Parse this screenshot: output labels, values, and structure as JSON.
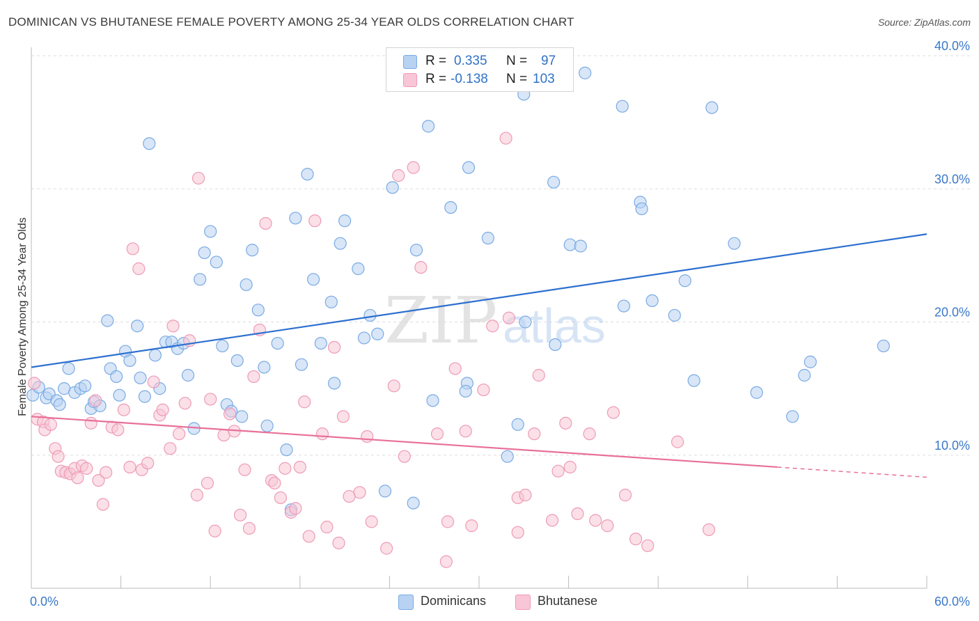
{
  "header": {
    "title": "DOMINICAN VS BHUTANESE FEMALE POVERTY AMONG 25-34 YEAR OLDS CORRELATION CHART",
    "source": "Source: ZipAtlas.com"
  },
  "legend": {
    "rows": [
      {
        "r_label": "R =",
        "r_value": "0.335",
        "n_label": "N =",
        "n_value": "97"
      },
      {
        "r_label": "R =",
        "r_value": "-0.138",
        "n_label": "N =",
        "n_value": "103"
      }
    ]
  },
  "bottom_legend": {
    "items": [
      {
        "label": "Dominicans"
      },
      {
        "label": "Bhutanese"
      }
    ]
  },
  "watermark": {
    "zip": "ZIP",
    "atlas": "atlas"
  },
  "colors": {
    "blue_fill": "#b8d2f2",
    "blue_stroke": "#7aaae3",
    "blue_line": "#2c6fcf",
    "pink_fill": "#f8c6d6",
    "pink_stroke": "#ee9ab6",
    "pink_line": "#e8709a",
    "axis_text": "#3a78c9",
    "grid": "#dddddd"
  },
  "chart_data": {
    "type": "scatter",
    "xlabel": "",
    "ylabel": "Female Poverty Among 25-34 Year Olds",
    "xlim": [
      0,
      60
    ],
    "ylim": [
      0,
      40
    ],
    "x_ticks": [
      "0.0%",
      "60.0%"
    ],
    "y_ticks": [
      {
        "value": 10,
        "label": "10.0%"
      },
      {
        "value": 20,
        "label": "20.0%"
      },
      {
        "value": 30,
        "label": "30.0%"
      },
      {
        "value": 40,
        "label": "40.0%"
      }
    ],
    "grid": true,
    "series": [
      {
        "name": "Dominicans",
        "color": "#7aaae3",
        "trend": {
          "x": [
            0,
            60
          ],
          "y": [
            16.6,
            26.6
          ]
        },
        "points": [
          [
            0.1,
            14.5
          ],
          [
            0.5,
            15.1
          ],
          [
            1.0,
            14.3
          ],
          [
            1.2,
            14.6
          ],
          [
            1.7,
            14.1
          ],
          [
            1.9,
            13.8
          ],
          [
            2.2,
            15.0
          ],
          [
            2.5,
            16.5
          ],
          [
            2.9,
            14.7
          ],
          [
            3.3,
            15.0
          ],
          [
            3.6,
            15.2
          ],
          [
            4.0,
            13.5
          ],
          [
            4.2,
            14.0
          ],
          [
            4.6,
            13.7
          ],
          [
            5.1,
            20.1
          ],
          [
            5.3,
            16.5
          ],
          [
            5.7,
            15.9
          ],
          [
            5.9,
            14.5
          ],
          [
            6.3,
            17.8
          ],
          [
            6.6,
            17.1
          ],
          [
            7.1,
            19.7
          ],
          [
            7.3,
            15.8
          ],
          [
            7.6,
            14.4
          ],
          [
            7.9,
            33.4
          ],
          [
            8.3,
            17.5
          ],
          [
            8.6,
            15.0
          ],
          [
            9.0,
            18.5
          ],
          [
            9.4,
            18.5
          ],
          [
            9.8,
            18.0
          ],
          [
            10.2,
            18.4
          ],
          [
            10.5,
            16.0
          ],
          [
            10.9,
            12.0
          ],
          [
            11.3,
            23.2
          ],
          [
            11.6,
            25.2
          ],
          [
            12.0,
            26.8
          ],
          [
            12.4,
            24.5
          ],
          [
            12.8,
            18.2
          ],
          [
            13.1,
            13.8
          ],
          [
            13.4,
            13.3
          ],
          [
            13.8,
            17.1
          ],
          [
            14.1,
            12.9
          ],
          [
            14.4,
            22.8
          ],
          [
            14.8,
            25.4
          ],
          [
            15.2,
            20.9
          ],
          [
            15.6,
            16.6
          ],
          [
            15.8,
            12.2
          ],
          [
            16.5,
            18.4
          ],
          [
            17.1,
            10.4
          ],
          [
            17.4,
            5.9
          ],
          [
            17.7,
            27.8
          ],
          [
            18.1,
            16.8
          ],
          [
            18.5,
            31.1
          ],
          [
            18.9,
            23.2
          ],
          [
            19.4,
            18.4
          ],
          [
            20.1,
            21.5
          ],
          [
            20.3,
            15.4
          ],
          [
            20.7,
            25.9
          ],
          [
            21.0,
            27.6
          ],
          [
            21.9,
            24.0
          ],
          [
            22.3,
            18.8
          ],
          [
            22.7,
            20.5
          ],
          [
            23.2,
            19.1
          ],
          [
            23.7,
            7.3
          ],
          [
            24.2,
            30.1
          ],
          [
            25.6,
            6.4
          ],
          [
            25.8,
            25.4
          ],
          [
            26.6,
            34.7
          ],
          [
            26.9,
            14.1
          ],
          [
            28.1,
            28.6
          ],
          [
            29.2,
            15.4
          ],
          [
            29.3,
            31.6
          ],
          [
            30.6,
            26.3
          ],
          [
            31.9,
            9.9
          ],
          [
            32.6,
            12.3
          ],
          [
            33.1,
            20.0
          ],
          [
            33.0,
            37.1
          ],
          [
            35.1,
            18.3
          ],
          [
            35.0,
            30.5
          ],
          [
            36.1,
            25.8
          ],
          [
            36.8,
            25.7
          ],
          [
            37.1,
            38.7
          ],
          [
            39.7,
            21.2
          ],
          [
            39.6,
            36.2
          ],
          [
            40.8,
            29.0
          ],
          [
            40.9,
            28.5
          ],
          [
            41.6,
            21.6
          ],
          [
            43.1,
            20.5
          ],
          [
            43.8,
            23.1
          ],
          [
            44.4,
            15.6
          ],
          [
            45.6,
            36.1
          ],
          [
            47.1,
            25.9
          ],
          [
            48.6,
            14.7
          ],
          [
            51.0,
            12.9
          ],
          [
            51.8,
            16.0
          ],
          [
            52.2,
            17.0
          ],
          [
            57.1,
            18.2
          ],
          [
            29.1,
            14.8
          ]
        ]
      },
      {
        "name": "Bhutanese",
        "color": "#ee9ab6",
        "trend": {
          "x": [
            0,
            50
          ],
          "y": [
            12.9,
            9.1
          ]
        },
        "points": [
          [
            0.2,
            15.4
          ],
          [
            0.4,
            12.7
          ],
          [
            0.8,
            12.5
          ],
          [
            0.9,
            11.9
          ],
          [
            1.3,
            12.3
          ],
          [
            1.6,
            10.5
          ],
          [
            1.8,
            9.9
          ],
          [
            2.0,
            8.8
          ],
          [
            2.3,
            8.7
          ],
          [
            2.6,
            8.6
          ],
          [
            2.9,
            9.0
          ],
          [
            3.1,
            8.3
          ],
          [
            3.4,
            9.2
          ],
          [
            3.7,
            9.0
          ],
          [
            4.0,
            12.4
          ],
          [
            4.3,
            14.1
          ],
          [
            4.5,
            8.1
          ],
          [
            4.8,
            6.3
          ],
          [
            5.0,
            8.7
          ],
          [
            5.4,
            12.1
          ],
          [
            5.8,
            11.9
          ],
          [
            6.2,
            13.4
          ],
          [
            6.6,
            9.1
          ],
          [
            6.8,
            25.5
          ],
          [
            7.2,
            24.0
          ],
          [
            7.4,
            8.9
          ],
          [
            7.8,
            9.4
          ],
          [
            8.2,
            15.5
          ],
          [
            8.6,
            13.0
          ],
          [
            8.8,
            13.4
          ],
          [
            9.3,
            10.5
          ],
          [
            9.5,
            19.7
          ],
          [
            9.9,
            11.6
          ],
          [
            10.3,
            13.9
          ],
          [
            10.6,
            18.6
          ],
          [
            11.1,
            7.0
          ],
          [
            11.2,
            30.8
          ],
          [
            11.8,
            7.9
          ],
          [
            12.0,
            14.2
          ],
          [
            12.3,
            4.3
          ],
          [
            12.9,
            11.5
          ],
          [
            13.3,
            13.1
          ],
          [
            13.6,
            11.8
          ],
          [
            14.0,
            5.5
          ],
          [
            14.3,
            8.9
          ],
          [
            14.6,
            4.5
          ],
          [
            14.9,
            15.9
          ],
          [
            15.3,
            19.4
          ],
          [
            15.7,
            27.4
          ],
          [
            16.1,
            8.1
          ],
          [
            16.3,
            7.9
          ],
          [
            16.7,
            6.8
          ],
          [
            17.0,
            9.0
          ],
          [
            17.4,
            5.7
          ],
          [
            17.7,
            6.0
          ],
          [
            18.0,
            9.1
          ],
          [
            18.3,
            14.0
          ],
          [
            18.6,
            3.9
          ],
          [
            19.0,
            27.6
          ],
          [
            19.5,
            11.6
          ],
          [
            19.8,
            4.6
          ],
          [
            20.3,
            18.1
          ],
          [
            20.6,
            3.4
          ],
          [
            20.9,
            12.9
          ],
          [
            21.3,
            6.9
          ],
          [
            22.0,
            7.2
          ],
          [
            22.5,
            11.4
          ],
          [
            22.8,
            5.0
          ],
          [
            23.8,
            3.0
          ],
          [
            24.3,
            15.2
          ],
          [
            24.6,
            31.0
          ],
          [
            25.0,
            9.9
          ],
          [
            25.6,
            31.6
          ],
          [
            26.1,
            24.1
          ],
          [
            27.2,
            11.6
          ],
          [
            27.8,
            2.0
          ],
          [
            27.9,
            5.0
          ],
          [
            28.4,
            16.5
          ],
          [
            29.1,
            11.8
          ],
          [
            29.5,
            4.7
          ],
          [
            30.3,
            14.9
          ],
          [
            30.9,
            19.7
          ],
          [
            31.8,
            33.8
          ],
          [
            32.0,
            20.3
          ],
          [
            32.6,
            6.8
          ],
          [
            32.6,
            4.2
          ],
          [
            33.1,
            7.0
          ],
          [
            33.7,
            11.6
          ],
          [
            34.0,
            16.0
          ],
          [
            34.9,
            5.1
          ],
          [
            35.3,
            8.8
          ],
          [
            35.8,
            12.4
          ],
          [
            36.1,
            9.1
          ],
          [
            36.6,
            5.6
          ],
          [
            37.4,
            11.6
          ],
          [
            37.8,
            5.1
          ],
          [
            38.6,
            4.7
          ],
          [
            39.0,
            13.2
          ],
          [
            39.8,
            7.0
          ],
          [
            40.5,
            3.7
          ],
          [
            41.3,
            3.2
          ],
          [
            43.3,
            11.0
          ],
          [
            45.4,
            4.4
          ]
        ]
      }
    ]
  }
}
